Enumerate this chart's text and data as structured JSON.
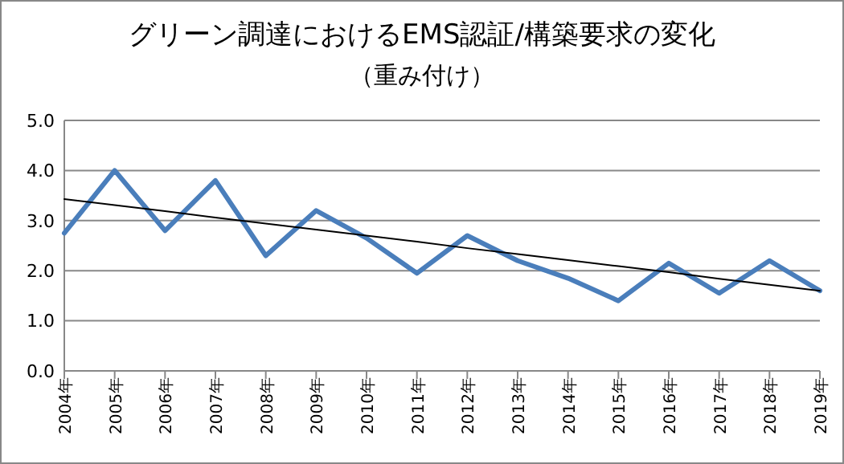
{
  "chart_data": {
    "type": "line",
    "title": "グリーン調達におけるEMS認証/構築要求の変化",
    "subtitle": "（重み付け）",
    "categories": [
      "2004年",
      "2005年",
      "2006年",
      "2007年",
      "2008年",
      "2009年",
      "2010年",
      "2011年",
      "2012年",
      "2013年",
      "2014年",
      "2015年",
      "2016年",
      "2017年",
      "2018年",
      "2019年"
    ],
    "series": [
      {
        "color": "#4a7ebb",
        "values": [
          2.75,
          4.0,
          2.8,
          3.8,
          2.3,
          3.2,
          2.65,
          1.95,
          2.7,
          2.2,
          1.85,
          1.4,
          2.15,
          1.55,
          2.2,
          1.6
        ]
      },
      {
        "color": "#000000",
        "line_style": "solid",
        "values": [
          3.43,
          3.31,
          3.19,
          3.06,
          2.94,
          2.82,
          2.7,
          2.58,
          2.45,
          2.33,
          2.21,
          2.09,
          1.97,
          1.84,
          1.72,
          1.6
        ]
      }
    ],
    "ylim": [
      0,
      5
    ],
    "yticks": [
      {
        "value": 0,
        "label": "0.0"
      },
      {
        "value": 1,
        "label": "1.0"
      },
      {
        "value": 2,
        "label": "2.0"
      },
      {
        "value": 3,
        "label": "3.0"
      },
      {
        "value": 4,
        "label": "4.0"
      },
      {
        "value": 5,
        "label": "5.0"
      }
    ],
    "grid": "y",
    "marker": "none"
  }
}
